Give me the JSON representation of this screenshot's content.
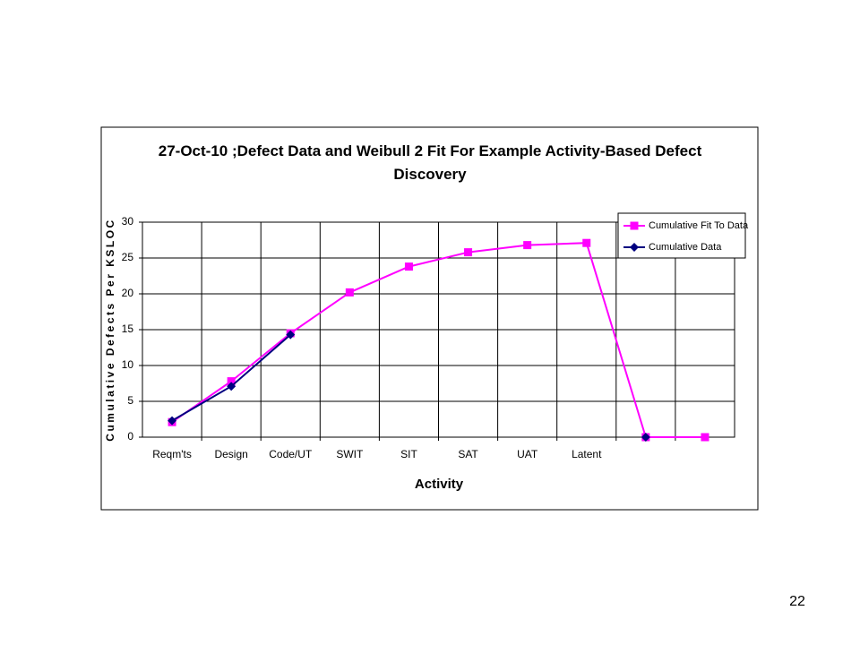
{
  "chart_data": {
    "type": "line",
    "title": "27-Oct-10 ;Defect Data and  Weibull  2  Fit  For Example Activity-Based Defect Discovery",
    "x_label": "Activity",
    "y_label": "Cumulative Defects Per KSLOC",
    "categories": [
      "Reqm'ts",
      "Design",
      "Code/UT",
      "SWIT",
      "SIT",
      "SAT",
      "UAT",
      "Latent",
      null,
      null
    ],
    "series": [
      {
        "name": "Cumulative Fit To Data",
        "color": "#ff00ff",
        "marker": "square",
        "values": [
          2.1,
          7.8,
          14.5,
          20.2,
          23.8,
          25.8,
          26.8,
          27.1,
          0,
          0
        ]
      },
      {
        "name": "Cumulative Data",
        "color": "#000080",
        "marker": "diamond",
        "values": [
          2.3,
          7.1,
          14.3,
          null,
          null,
          null,
          null,
          null,
          0,
          null
        ]
      }
    ],
    "ylim": [
      0,
      30
    ],
    "yticks": [
      0,
      5,
      10,
      15,
      20,
      25,
      30
    ],
    "grid": true,
    "legend": "top-right"
  },
  "page_number": "22"
}
